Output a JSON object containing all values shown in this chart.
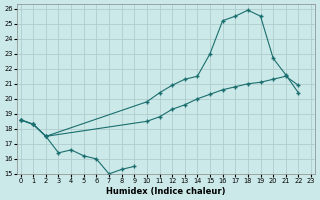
{
  "xlabel": "Humidex (Indice chaleur)",
  "bg_color": "#cce9e9",
  "line_color": "#1a6e6e",
  "grid_color": "#b8d8d8",
  "xlim": [
    -0.3,
    23.3
  ],
  "ylim": [
    15,
    26.3
  ],
  "xticks": [
    0,
    1,
    2,
    3,
    4,
    5,
    6,
    7,
    8,
    9,
    10,
    11,
    12,
    13,
    14,
    15,
    16,
    17,
    18,
    19,
    20,
    21,
    22,
    23
  ],
  "yticks": [
    15,
    16,
    17,
    18,
    19,
    20,
    21,
    22,
    23,
    24,
    25,
    26
  ],
  "line1_x": [
    0,
    1,
    2,
    3,
    4,
    5,
    6,
    7,
    8,
    9
  ],
  "line1_y": [
    18.6,
    18.3,
    17.5,
    16.4,
    16.6,
    16.2,
    16.0,
    15.0,
    15.3,
    15.5
  ],
  "line2_x": [
    0,
    1,
    2,
    10,
    11,
    12,
    13,
    14,
    15,
    16,
    17,
    18,
    19,
    20,
    21,
    22
  ],
  "line2_y": [
    18.6,
    18.3,
    17.5,
    18.5,
    18.8,
    19.3,
    19.6,
    20.0,
    20.3,
    20.6,
    20.8,
    21.0,
    21.1,
    21.3,
    21.5,
    20.9
  ],
  "line3_x": [
    0,
    1,
    2,
    10,
    11,
    12,
    13,
    14,
    15,
    16,
    17,
    18,
    19,
    20,
    21,
    22
  ],
  "line3_y": [
    18.6,
    18.3,
    17.5,
    19.8,
    20.4,
    20.9,
    21.3,
    21.5,
    23.0,
    25.2,
    25.5,
    25.9,
    25.5,
    22.7,
    21.6,
    20.4
  ]
}
